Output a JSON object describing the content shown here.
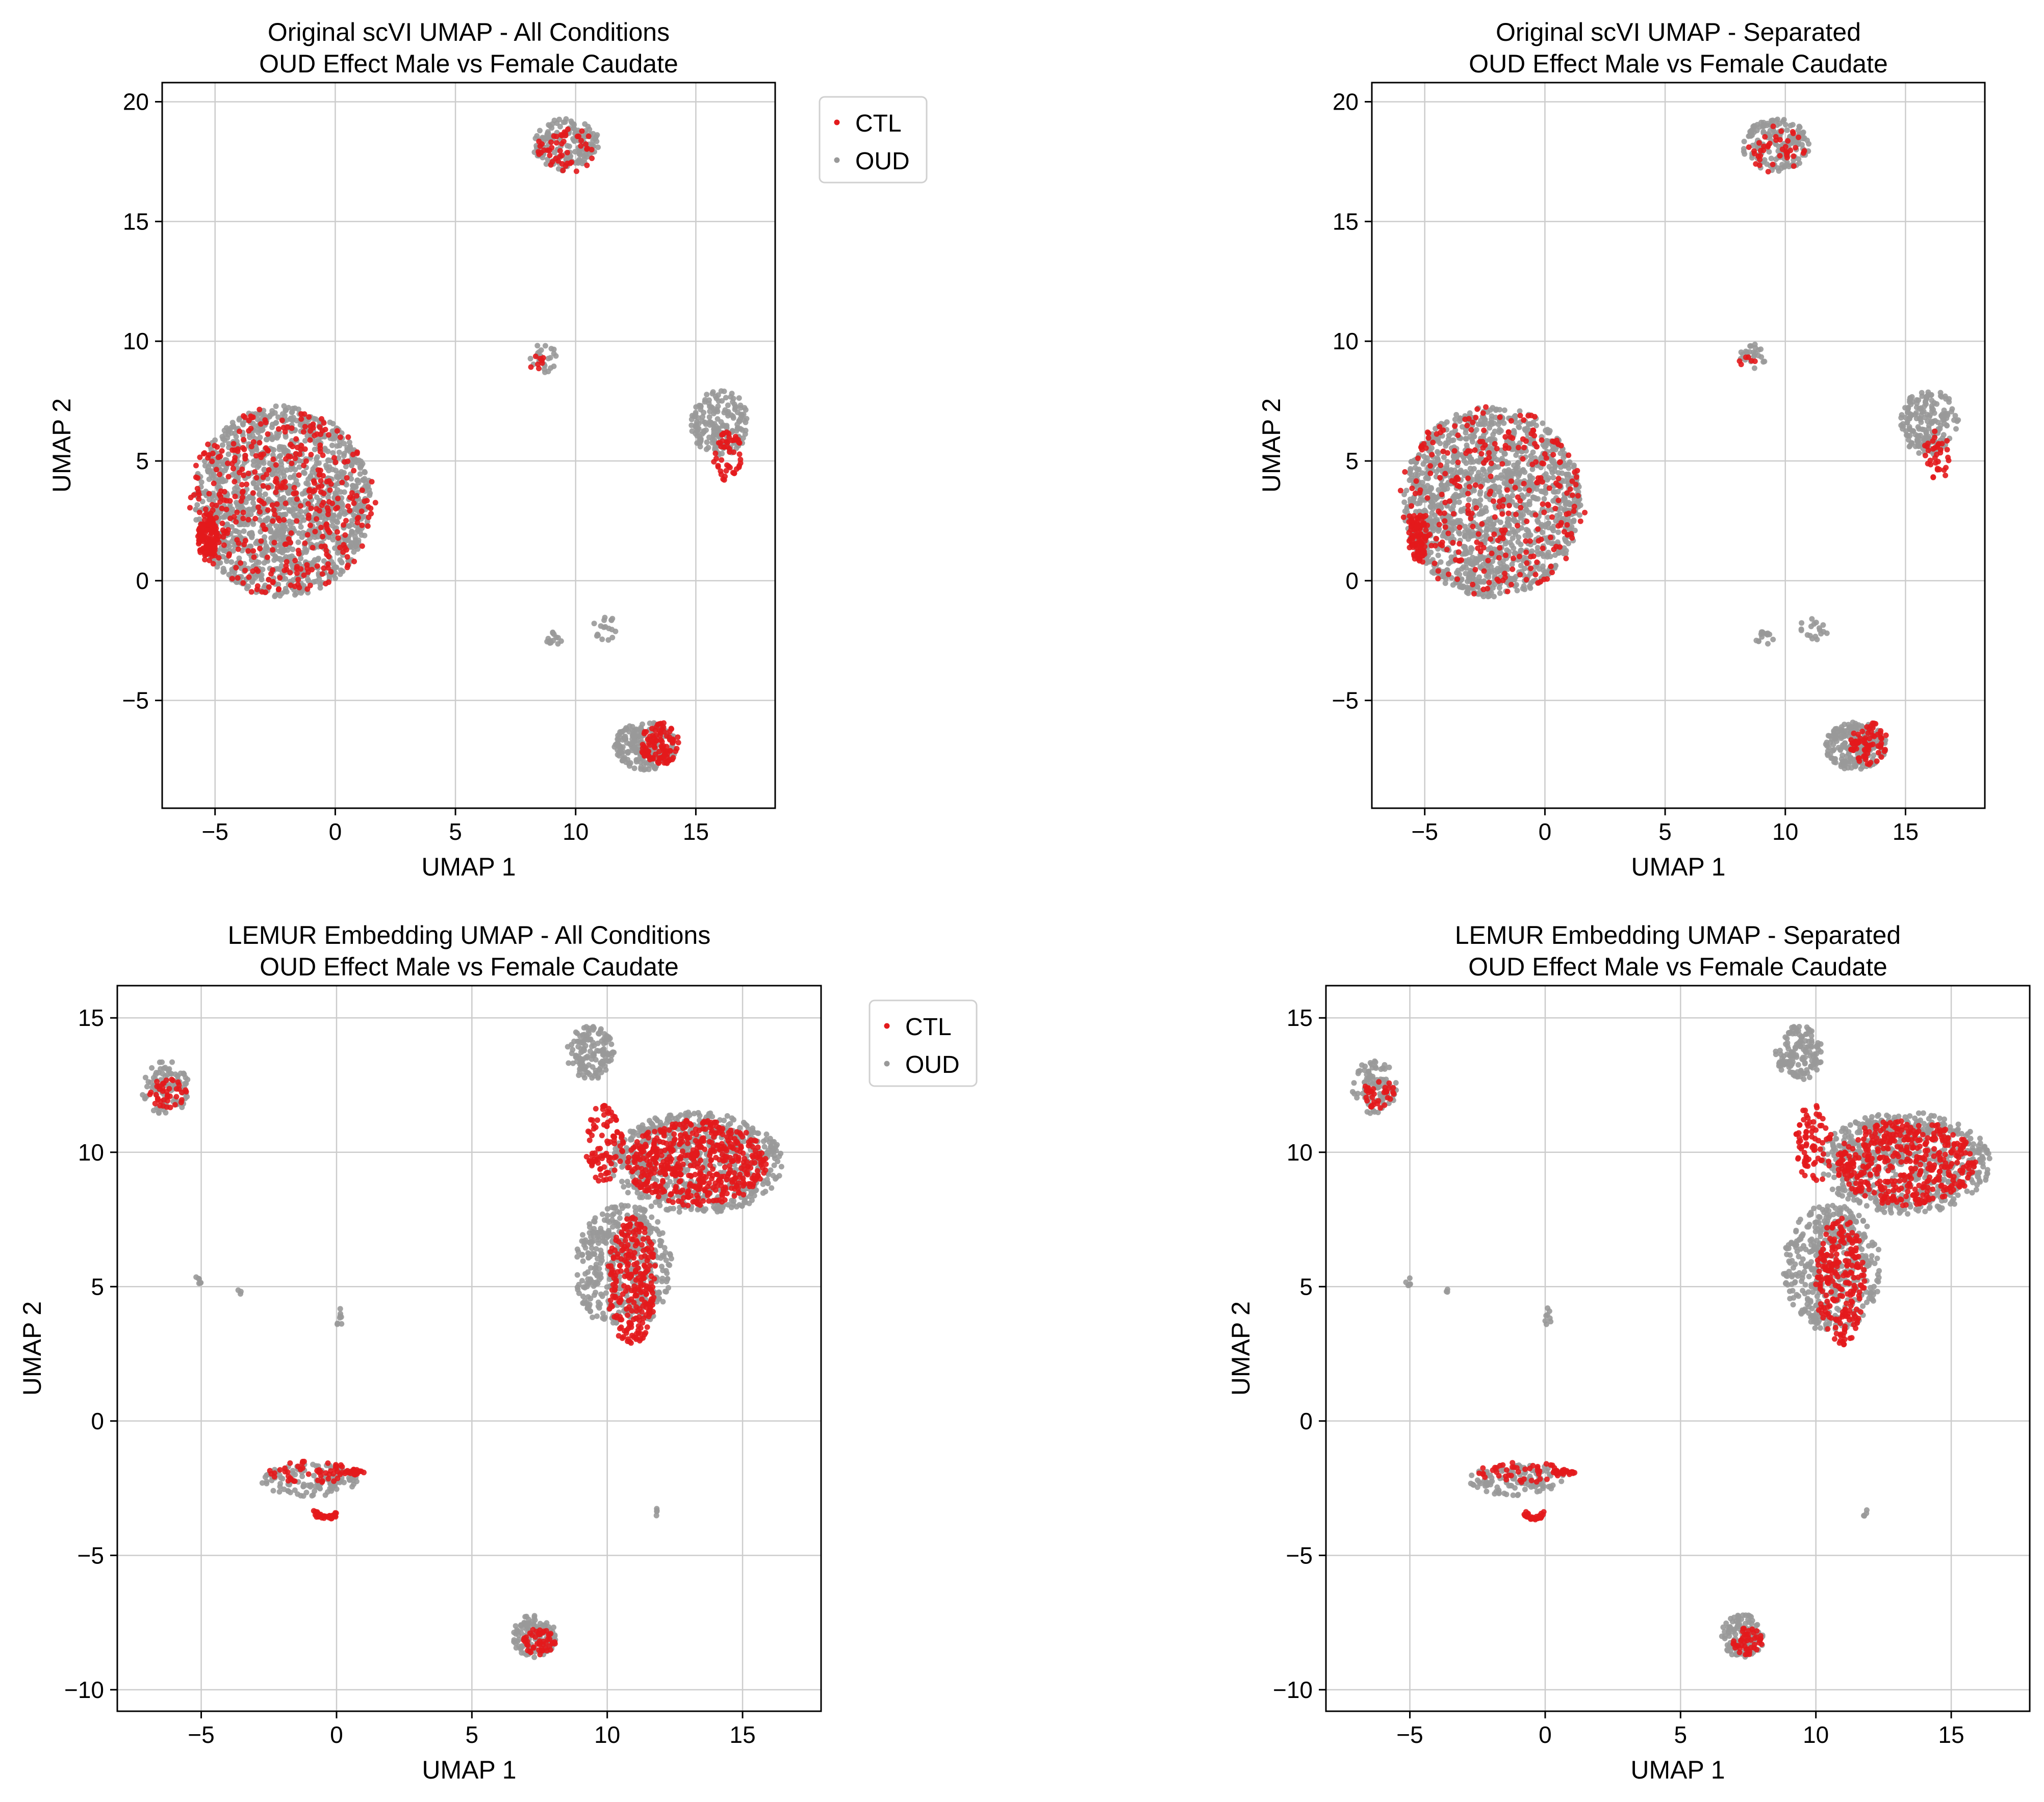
{
  "colors": {
    "CTL": "#e31a1c",
    "OUD": "#999999",
    "grid": "#cccccc",
    "axis": "#000000"
  },
  "chart_data": [
    {
      "type": "scatter",
      "title_line1": "Original scVI UMAP - All Conditions",
      "title_line2": "OUD Effect Male vs Female Caudate",
      "xlabel": "UMAP 1",
      "ylabel": "UMAP 2",
      "xlim": [
        -7.2,
        18.3
      ],
      "ylim": [
        -9.5,
        20.8
      ],
      "xticks": [
        -5,
        0,
        5,
        10,
        15
      ],
      "yticks": [
        -5,
        0,
        5,
        10,
        15,
        20
      ],
      "grid": true,
      "legend": {
        "show": true,
        "placement": "outside-top-right",
        "entries": [
          "CTL",
          "OUD"
        ]
      },
      "series": [
        {
          "name": "OUD",
          "color": "#999999",
          "clusters": [
            {
              "cx": -2.2,
              "cy": 3.3,
              "rx": 3.7,
              "ry": 4.0,
              "n": 1400,
              "shape": "blob"
            },
            {
              "cx": 9.6,
              "cy": 18.2,
              "rx": 1.4,
              "ry": 1.1,
              "n": 160,
              "shape": "blob"
            },
            {
              "cx": 8.7,
              "cy": 9.3,
              "rx": 0.6,
              "ry": 0.6,
              "n": 25,
              "shape": "blob"
            },
            {
              "cx": 16.0,
              "cy": 6.6,
              "rx": 1.2,
              "ry": 1.4,
              "n": 190,
              "shape": "blob"
            },
            {
              "cx": 9.1,
              "cy": -2.4,
              "rx": 0.4,
              "ry": 0.3,
              "n": 14,
              "shape": "blob"
            },
            {
              "cx": 11.2,
              "cy": -2.0,
              "rx": 0.6,
              "ry": 0.5,
              "n": 18,
              "shape": "blob"
            },
            {
              "cx": 12.9,
              "cy": -6.9,
              "rx": 1.3,
              "ry": 1.0,
              "n": 220,
              "shape": "blob"
            }
          ]
        },
        {
          "name": "CTL",
          "color": "#e31a1c",
          "clusters": [
            {
              "cx": -2.2,
              "cy": 3.3,
              "rx": 3.9,
              "ry": 4.0,
              "n": 400,
              "shape": "blob"
            },
            {
              "cx": -5.3,
              "cy": 1.8,
              "rx": 0.4,
              "ry": 1.0,
              "n": 120,
              "shape": "blob"
            },
            {
              "cx": 9.6,
              "cy": 18.0,
              "rx": 1.2,
              "ry": 1.0,
              "n": 50,
              "shape": "blob"
            },
            {
              "cx": 8.4,
              "cy": 9.1,
              "rx": 0.4,
              "ry": 0.3,
              "n": 8,
              "shape": "blob"
            },
            {
              "cx": 16.3,
              "cy": 5.2,
              "rx": 0.6,
              "ry": 1.1,
              "n": 50,
              "shape": "blob"
            },
            {
              "cx": 13.5,
              "cy": -6.8,
              "rx": 0.8,
              "ry": 0.9,
              "n": 100,
              "shape": "blob"
            }
          ]
        }
      ]
    },
    {
      "type": "scatter",
      "title_line1": "Original scVI UMAP - Separated",
      "title_line2": "OUD Effect Male vs Female Caudate",
      "xlabel": "UMAP 1",
      "ylabel": "UMAP 2",
      "xlim": [
        -7.2,
        18.3
      ],
      "ylim": [
        -9.5,
        20.8
      ],
      "xticks": [
        -5,
        0,
        5,
        10,
        15
      ],
      "yticks": [
        -5,
        0,
        5,
        10,
        15,
        20
      ],
      "grid": true,
      "legend": {
        "show": false
      },
      "series": [
        {
          "name": "OUD",
          "color": "#999999",
          "clusters": [
            {
              "cx": -2.2,
              "cy": 3.3,
              "rx": 3.7,
              "ry": 4.0,
              "n": 1400,
              "shape": "blob"
            },
            {
              "cx": 9.6,
              "cy": 18.2,
              "rx": 1.4,
              "ry": 1.1,
              "n": 160,
              "shape": "blob"
            },
            {
              "cx": 8.7,
              "cy": 9.3,
              "rx": 0.6,
              "ry": 0.6,
              "n": 25,
              "shape": "blob"
            },
            {
              "cx": 16.0,
              "cy": 6.6,
              "rx": 1.2,
              "ry": 1.4,
              "n": 190,
              "shape": "blob"
            },
            {
              "cx": 9.1,
              "cy": -2.4,
              "rx": 0.4,
              "ry": 0.3,
              "n": 14,
              "shape": "blob"
            },
            {
              "cx": 11.2,
              "cy": -2.0,
              "rx": 0.6,
              "ry": 0.5,
              "n": 18,
              "shape": "blob"
            },
            {
              "cx": 12.9,
              "cy": -6.9,
              "rx": 1.3,
              "ry": 1.0,
              "n": 220,
              "shape": "blob"
            }
          ]
        },
        {
          "name": "CTL",
          "color": "#e31a1c",
          "clusters": [
            {
              "cx": -2.2,
              "cy": 3.3,
              "rx": 3.9,
              "ry": 4.0,
              "n": 300,
              "shape": "blob"
            },
            {
              "cx": -5.3,
              "cy": 1.8,
              "rx": 0.4,
              "ry": 1.0,
              "n": 90,
              "shape": "blob"
            },
            {
              "cx": 9.6,
              "cy": 18.0,
              "rx": 1.2,
              "ry": 1.0,
              "n": 40,
              "shape": "blob"
            },
            {
              "cx": 8.4,
              "cy": 9.1,
              "rx": 0.4,
              "ry": 0.3,
              "n": 6,
              "shape": "blob"
            },
            {
              "cx": 16.3,
              "cy": 5.2,
              "rx": 0.6,
              "ry": 1.1,
              "n": 35,
              "shape": "blob"
            },
            {
              "cx": 13.5,
              "cy": -6.8,
              "rx": 0.8,
              "ry": 0.9,
              "n": 70,
              "shape": "blob"
            }
          ]
        }
      ]
    },
    {
      "type": "scatter",
      "title_line1": "LEMUR Embedding UMAP - All Conditions",
      "title_line2": "OUD Effect Male vs Female Caudate",
      "xlabel": "UMAP 1",
      "ylabel": "UMAP 2",
      "xlim": [
        -8.1,
        17.9
      ],
      "ylim": [
        -10.8,
        16.2
      ],
      "xticks": [
        -5,
        0,
        5,
        10,
        15
      ],
      "yticks": [
        -10,
        -5,
        0,
        5,
        10,
        15
      ],
      "grid": true,
      "legend": {
        "show": true,
        "placement": "outside-top-right",
        "entries": [
          "CTL",
          "OUD"
        ]
      },
      "series": [
        {
          "name": "OUD",
          "color": "#999999",
          "clusters": [
            {
              "cx": -6.3,
              "cy": 12.4,
              "rx": 0.9,
              "ry": 1.0,
              "n": 90,
              "shape": "blob"
            },
            {
              "cx": 9.4,
              "cy": 13.7,
              "rx": 0.9,
              "ry": 1.0,
              "n": 140,
              "shape": "blob"
            },
            {
              "cx": 13.3,
              "cy": 9.6,
              "rx": 3.2,
              "ry": 1.9,
              "n": 650,
              "shape": "blob"
            },
            {
              "cx": 10.6,
              "cy": 5.7,
              "rx": 1.8,
              "ry": 2.4,
              "n": 450,
              "shape": "blob"
            },
            {
              "cx": -5.1,
              "cy": 5.2,
              "rx": 0.15,
              "ry": 0.2,
              "n": 6,
              "shape": "blob"
            },
            {
              "cx": -3.6,
              "cy": 4.8,
              "rx": 0.1,
              "ry": 0.1,
              "n": 3,
              "shape": "blob"
            },
            {
              "cx": 0.1,
              "cy": 3.8,
              "rx": 0.15,
              "ry": 0.4,
              "n": 8,
              "shape": "blob"
            },
            {
              "cx": -1.0,
              "cy": -2.2,
              "rx": 1.8,
              "ry": 0.6,
              "n": 120,
              "shape": "blob"
            },
            {
              "cx": 11.8,
              "cy": -3.4,
              "rx": 0.1,
              "ry": 0.15,
              "n": 4,
              "shape": "blob"
            },
            {
              "cx": 7.3,
              "cy": -8.0,
              "rx": 0.8,
              "ry": 0.8,
              "n": 120,
              "shape": "blob"
            }
          ]
        },
        {
          "name": "CTL",
          "color": "#e31a1c",
          "clusters": [
            {
              "cx": -6.2,
              "cy": 12.2,
              "rx": 0.7,
              "ry": 0.6,
              "n": 40,
              "shape": "blob"
            },
            {
              "cx": 13.3,
              "cy": 9.6,
              "rx": 2.6,
              "ry": 1.6,
              "n": 500,
              "shape": "blob"
            },
            {
              "cx": 9.9,
              "cy": 10.3,
              "rx": 0.7,
              "ry": 1.5,
              "n": 90,
              "shape": "blob"
            },
            {
              "cx": 10.9,
              "cy": 5.2,
              "rx": 0.9,
              "ry": 2.4,
              "n": 250,
              "shape": "blob"
            },
            {
              "cx": -0.9,
              "cy": -1.9,
              "rx": 1.6,
              "ry": 0.4,
              "n": 50,
              "shape": "blob"
            },
            {
              "cx": 0.7,
              "cy": -1.9,
              "rx": 0.4,
              "ry": 0.1,
              "n": 20,
              "shape": "blob"
            },
            {
              "cx": -0.4,
              "cy": -3.3,
              "rx": 0.4,
              "ry": 0.3,
              "n": 30,
              "shape": "arc"
            },
            {
              "cx": 7.5,
              "cy": -8.2,
              "rx": 0.6,
              "ry": 0.5,
              "n": 50,
              "shape": "blob"
            }
          ]
        }
      ]
    },
    {
      "type": "scatter",
      "title_line1": "LEMUR Embedding UMAP - Separated",
      "title_line2": "OUD Effect Male vs Female Caudate",
      "xlabel": "UMAP 1",
      "ylabel": "UMAP 2",
      "xlim": [
        -8.1,
        17.9
      ],
      "ylim": [
        -10.8,
        16.2
      ],
      "xticks": [
        -5,
        0,
        5,
        10,
        15
      ],
      "yticks": [
        -10,
        -5,
        0,
        5,
        10,
        15
      ],
      "grid": true,
      "legend": {
        "show": false
      },
      "series": [
        {
          "name": "OUD",
          "color": "#999999",
          "clusters": [
            {
              "cx": -6.3,
              "cy": 12.4,
              "rx": 0.9,
              "ry": 1.0,
              "n": 90,
              "shape": "blob"
            },
            {
              "cx": 9.4,
              "cy": 13.7,
              "rx": 0.9,
              "ry": 1.0,
              "n": 140,
              "shape": "blob"
            },
            {
              "cx": 13.3,
              "cy": 9.6,
              "rx": 3.2,
              "ry": 1.9,
              "n": 650,
              "shape": "blob"
            },
            {
              "cx": 10.6,
              "cy": 5.7,
              "rx": 1.8,
              "ry": 2.4,
              "n": 450,
              "shape": "blob"
            },
            {
              "cx": -5.1,
              "cy": 5.2,
              "rx": 0.15,
              "ry": 0.2,
              "n": 6,
              "shape": "blob"
            },
            {
              "cx": -3.6,
              "cy": 4.8,
              "rx": 0.1,
              "ry": 0.1,
              "n": 3,
              "shape": "blob"
            },
            {
              "cx": 0.1,
              "cy": 3.8,
              "rx": 0.15,
              "ry": 0.4,
              "n": 8,
              "shape": "blob"
            },
            {
              "cx": -1.0,
              "cy": -2.2,
              "rx": 1.8,
              "ry": 0.6,
              "n": 120,
              "shape": "blob"
            },
            {
              "cx": 11.8,
              "cy": -3.4,
              "rx": 0.1,
              "ry": 0.15,
              "n": 4,
              "shape": "blob"
            },
            {
              "cx": 7.3,
              "cy": -8.0,
              "rx": 0.8,
              "ry": 0.8,
              "n": 120,
              "shape": "blob"
            }
          ]
        },
        {
          "name": "CTL",
          "color": "#e31a1c",
          "clusters": [
            {
              "cx": -6.2,
              "cy": 12.2,
              "rx": 0.7,
              "ry": 0.6,
              "n": 35,
              "shape": "blob"
            },
            {
              "cx": 13.3,
              "cy": 9.6,
              "rx": 2.6,
              "ry": 1.6,
              "n": 420,
              "shape": "blob"
            },
            {
              "cx": 9.9,
              "cy": 10.3,
              "rx": 0.7,
              "ry": 1.5,
              "n": 80,
              "shape": "blob"
            },
            {
              "cx": 10.9,
              "cy": 5.2,
              "rx": 0.9,
              "ry": 2.4,
              "n": 220,
              "shape": "blob"
            },
            {
              "cx": -0.9,
              "cy": -1.9,
              "rx": 1.6,
              "ry": 0.4,
              "n": 45,
              "shape": "blob"
            },
            {
              "cx": 0.7,
              "cy": -1.9,
              "rx": 0.4,
              "ry": 0.1,
              "n": 20,
              "shape": "blob"
            },
            {
              "cx": -0.4,
              "cy": -3.3,
              "rx": 0.4,
              "ry": 0.3,
              "n": 30,
              "shape": "arc"
            },
            {
              "cx": 7.5,
              "cy": -8.2,
              "rx": 0.6,
              "ry": 0.5,
              "n": 45,
              "shape": "blob"
            }
          ]
        }
      ]
    }
  ]
}
